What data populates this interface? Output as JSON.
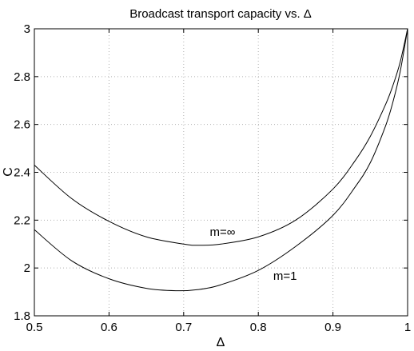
{
  "chart_data": {
    "type": "line",
    "title": "Broadcast transport capacity vs. Δ",
    "xlabel": "Δ",
    "ylabel": "C",
    "xlim": [
      0.5,
      1.0
    ],
    "ylim": [
      1.8,
      3.0
    ],
    "xticks": [
      0.5,
      0.6,
      0.7,
      0.8,
      0.9,
      1.0
    ],
    "xtick_labels": [
      "0.5",
      "0.6",
      "0.7",
      "0.8",
      "0.9",
      "1"
    ],
    "yticks": [
      1.8,
      2.0,
      2.2,
      2.4,
      2.6,
      2.8,
      3.0
    ],
    "ytick_labels": [
      "1.8",
      "2",
      "2.2",
      "2.4",
      "2.6",
      "2.8",
      "3"
    ],
    "grid": true,
    "series": [
      {
        "name": "m=∞",
        "x": [
          0.5,
          0.55,
          0.6,
          0.65,
          0.7,
          0.72,
          0.75,
          0.8,
          0.85,
          0.9,
          0.93,
          0.95,
          0.97,
          0.98,
          0.99,
          1.0
        ],
        "y": [
          2.43,
          2.29,
          2.195,
          2.13,
          2.1,
          2.095,
          2.1,
          2.13,
          2.2,
          2.33,
          2.45,
          2.55,
          2.68,
          2.76,
          2.86,
          3.0
        ]
      },
      {
        "name": "m=1",
        "x": [
          0.5,
          0.55,
          0.6,
          0.65,
          0.69,
          0.72,
          0.75,
          0.8,
          0.85,
          0.9,
          0.93,
          0.95,
          0.97,
          0.98,
          0.99,
          1.0
        ],
        "y": [
          2.16,
          2.03,
          1.955,
          1.915,
          1.905,
          1.91,
          1.93,
          1.99,
          2.09,
          2.22,
          2.34,
          2.44,
          2.59,
          2.69,
          2.82,
          3.0
        ]
      }
    ],
    "annotations": [
      {
        "text": "m=∞",
        "x": 0.735,
        "y": 2.135
      },
      {
        "text": "m=1",
        "x": 0.82,
        "y": 1.95
      }
    ]
  }
}
